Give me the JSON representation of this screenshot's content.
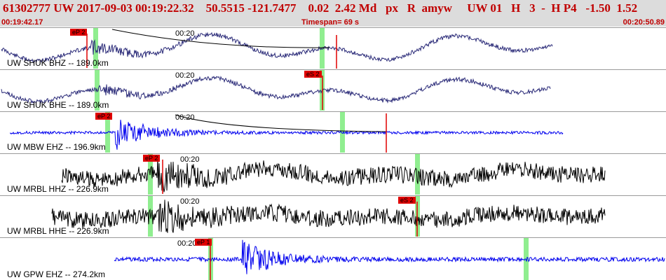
{
  "header": {
    "event_summary": "61302777 UW 2017-09-03 00:19:22.32    50.5515 -121.7477    0.02  2.42 Md   px   R  amyw     UW 01   H   3  -  H P4   -1.50  1.52",
    "start_time": "00:19:42.17",
    "timespan": "Timespan=  69 s",
    "end_time": "00:20:50.89"
  },
  "colors": {
    "header_bg": "#dcdcdc",
    "header_text": "#c00000",
    "trace_dark": "#2a2a78",
    "trace_blue": "#0000ee",
    "trace_black": "#000000",
    "phase_window": "#90ee90",
    "pick_red": "#e00000"
  },
  "minute_marker": "00:20",
  "panels": [
    {
      "station": "UW SHUK BHZ -- 189.0km",
      "trace_color": "#2a2a78",
      "pick_label": "eP 2",
      "picks": [
        "eP 2"
      ]
    },
    {
      "station": "UW SHUK BHE -- 189.0km",
      "trace_color": "#2a2a78",
      "pick_label": "eS 2",
      "picks": [
        "eS 2"
      ]
    },
    {
      "station": "UW MBW EHZ -- 196.9km",
      "trace_color": "#0000ee",
      "pick_label": "eP 2",
      "picks": [
        "eP 2"
      ]
    },
    {
      "station": "UW MRBL HHZ -- 226.9km",
      "trace_color": "#000000",
      "pick_label": "eP 2",
      "picks": [
        "eP 2"
      ]
    },
    {
      "station": "UW MRBL HHE -- 226.9km",
      "trace_color": "#000000",
      "pick_label": "eS 2",
      "picks": [
        "eS 2"
      ]
    },
    {
      "station": "UW GPW EHZ -- 274.2km",
      "trace_color": "#0000ee",
      "pick_label": "eP 1",
      "picks": [
        "eP 1"
      ]
    }
  ]
}
